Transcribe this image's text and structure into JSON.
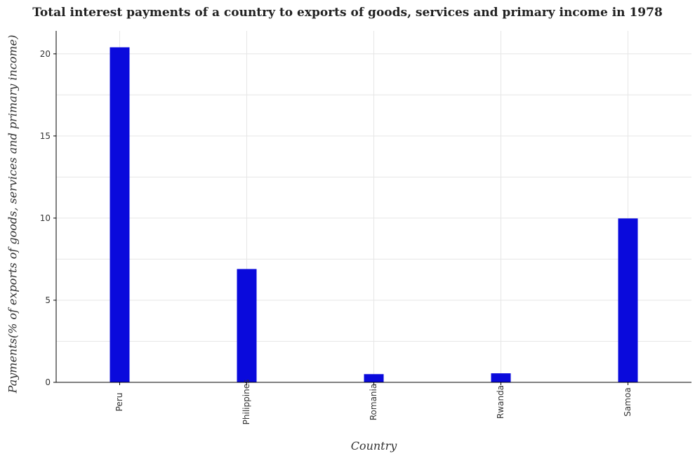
{
  "chart_data": {
    "type": "bar",
    "title": "Total interest payments of a country to exports of goods, services and primary income in 1978",
    "xlabel": "Country",
    "ylabel": "Payments(% of exports of goods, services and primary income)",
    "categories": [
      "Peru",
      "Philippines",
      "Romania",
      "Rwanda",
      "Samoa"
    ],
    "values": [
      20.4,
      6.9,
      0.5,
      0.55,
      9.98
    ],
    "ylim": [
      0,
      21.4
    ],
    "yticks": [
      0,
      5,
      10,
      15,
      20
    ],
    "grid": true,
    "bar_color": "#0a0adc"
  }
}
